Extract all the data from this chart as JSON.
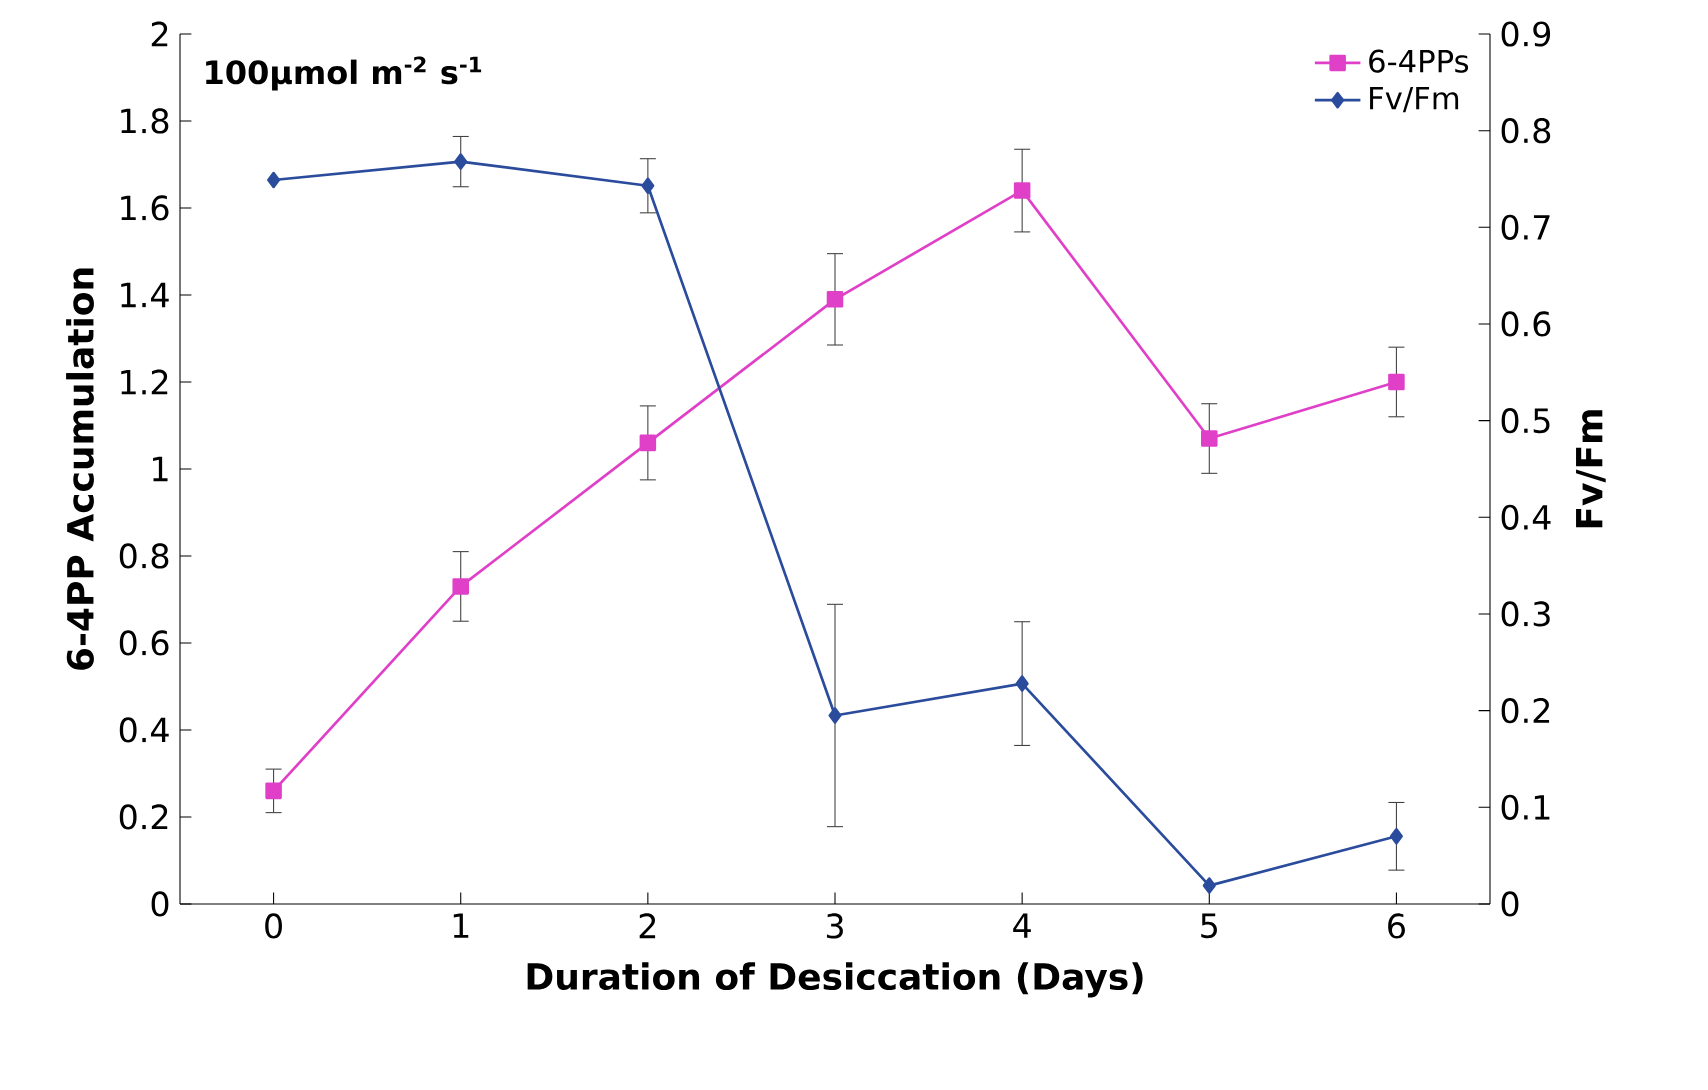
{
  "chart_data": {
    "type": "line",
    "xlabel": "Duration of Desiccation (Days)",
    "ylabel": "6-4PP Accumulation",
    "y2label": "Fv/Fm",
    "categories": [
      "0",
      "1",
      "2",
      "3",
      "4",
      "5",
      "6"
    ],
    "ylim": [
      0,
      2
    ],
    "yticks": [
      0,
      0.2,
      0.4,
      0.6,
      0.8,
      1,
      1.2,
      1.4,
      1.6,
      1.8,
      2
    ],
    "y2lim": [
      0,
      0.9
    ],
    "y2ticks": [
      0,
      0.1,
      0.2,
      0.3,
      0.4,
      0.5,
      0.6,
      0.7,
      0.8,
      0.9
    ],
    "legend": "top right",
    "grid": false,
    "annotations": [
      "100µmol m$^{-2}$ s$^{-1}$"
    ],
    "series": [
      {
        "name": "6-4PPs",
        "color": "#e040c8",
        "marker": "square",
        "values": [
          0.26,
          0.73,
          1.06,
          1.39,
          1.64,
          1.07,
          1.2
        ],
        "errors": [
          0.05,
          0.08,
          0.085,
          0.105,
          0.095,
          0.08,
          0.08
        ]
      },
      {
        "name": "Fv/Fm",
        "color": "#2b4c9c",
        "marker": "diamond",
        "axis": "y2",
        "values": [
          0.749,
          0.768,
          0.743,
          0.195,
          0.228,
          0.019,
          0.07
        ],
        "errors": [
          null,
          0.026,
          0.028,
          0.115,
          0.064,
          null,
          0.035
        ]
      }
    ]
  }
}
